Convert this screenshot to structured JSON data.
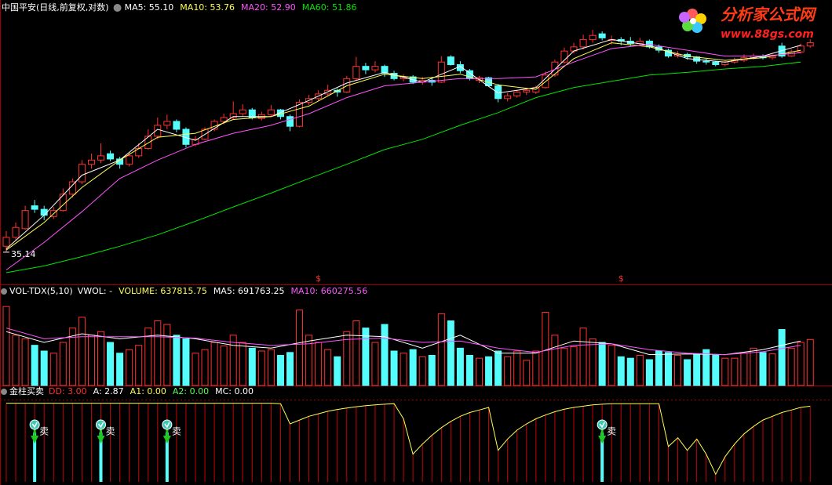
{
  "chart_data": [
    {
      "type": "candlestick",
      "title": "中国平安(日线,前复权,对数)",
      "log_scale": true,
      "ylim": [
        32.8,
        59
      ],
      "up_color": "#ff3232",
      "down_color": "#54fcfc",
      "low_marker": 35.14,
      "events": {
        "label": "$",
        "index": [
          33,
          65
        ]
      },
      "ohlc": [
        [
          35.6,
          36.8,
          35.14,
          36.3
        ],
        [
          36.3,
          37.5,
          36.0,
          37.1
        ],
        [
          37.0,
          38.9,
          36.9,
          38.5
        ],
        [
          38.9,
          39.4,
          38.3,
          38.6
        ],
        [
          38.6,
          38.9,
          37.7,
          38.1
        ],
        [
          38.0,
          38.8,
          37.8,
          38.5
        ],
        [
          38.5,
          40.4,
          38.4,
          39.9
        ],
        [
          39.9,
          41.3,
          39.6,
          41.0
        ],
        [
          41.0,
          43.0,
          40.8,
          42.6
        ],
        [
          42.6,
          43.6,
          42.2,
          43.0
        ],
        [
          43.0,
          44.6,
          42.7,
          43.4
        ],
        [
          43.6,
          43.9,
          42.9,
          43.1
        ],
        [
          43.1,
          43.3,
          42.2,
          42.6
        ],
        [
          42.6,
          43.7,
          42.4,
          43.4
        ],
        [
          43.4,
          44.6,
          43.2,
          44.1
        ],
        [
          44.1,
          46.0,
          44.0,
          45.3
        ],
        [
          45.3,
          47.2,
          45.0,
          46.4
        ],
        [
          46.4,
          47.5,
          46.0,
          46.8
        ],
        [
          46.8,
          47.0,
          45.7,
          46.0
        ],
        [
          46.0,
          46.2,
          44.2,
          44.5
        ],
        [
          44.5,
          45.3,
          44.3,
          45.0
        ],
        [
          45.0,
          46.2,
          44.9,
          46.0
        ],
        [
          46.0,
          47.0,
          45.8,
          46.8
        ],
        [
          46.8,
          47.6,
          46.5,
          47.2
        ],
        [
          47.2,
          48.9,
          47.0,
          47.6
        ],
        [
          47.6,
          48.6,
          47.3,
          48.0
        ],
        [
          48.0,
          48.2,
          47.0,
          47.2
        ],
        [
          47.1,
          47.8,
          46.9,
          47.5
        ],
        [
          47.5,
          48.5,
          47.3,
          48.0
        ],
        [
          48.0,
          48.1,
          47.0,
          47.3
        ],
        [
          47.3,
          47.5,
          45.8,
          46.3
        ],
        [
          46.3,
          49.1,
          46.2,
          48.8
        ],
        [
          48.8,
          49.6,
          48.5,
          49.2
        ],
        [
          49.2,
          50.1,
          49.0,
          49.7
        ],
        [
          49.7,
          50.7,
          49.5,
          50.1
        ],
        [
          50.1,
          50.3,
          49.4,
          49.9
        ],
        [
          49.9,
          51.7,
          49.8,
          51.4
        ],
        [
          51.4,
          53.9,
          51.2,
          52.8
        ],
        [
          52.8,
          53.2,
          51.9,
          52.4
        ],
        [
          52.4,
          53.4,
          52.1,
          52.8
        ],
        [
          52.8,
          53.0,
          51.6,
          52.0
        ],
        [
          52.0,
          52.3,
          51.2,
          51.4
        ],
        [
          51.4,
          51.9,
          51.1,
          51.6
        ],
        [
          51.6,
          51.8,
          50.8,
          51.0
        ],
        [
          51.0,
          51.6,
          50.7,
          51.2
        ],
        [
          51.2,
          51.5,
          50.6,
          51.0
        ],
        [
          51.0,
          54.0,
          50.9,
          53.3
        ],
        [
          53.9,
          54.1,
          52.9,
          53.0
        ],
        [
          53.0,
          53.4,
          52.0,
          52.3
        ],
        [
          52.3,
          52.5,
          51.2,
          51.4
        ],
        [
          51.2,
          51.7,
          50.9,
          51.5
        ],
        [
          51.5,
          51.6,
          50.5,
          50.6
        ],
        [
          50.6,
          50.8,
          48.8,
          49.2
        ],
        [
          49.2,
          49.8,
          48.9,
          49.5
        ],
        [
          49.5,
          50.1,
          49.3,
          49.9
        ],
        [
          49.9,
          50.3,
          49.6,
          50.1
        ],
        [
          49.9,
          50.6,
          49.7,
          50.4
        ],
        [
          50.4,
          52.2,
          50.3,
          51.8
        ],
        [
          51.8,
          53.6,
          51.6,
          53.3
        ],
        [
          53.3,
          55.0,
          53.1,
          54.6
        ],
        [
          54.6,
          55.6,
          54.3,
          55.1
        ],
        [
          55.1,
          56.6,
          54.8,
          56.0
        ],
        [
          56.0,
          57.2,
          55.6,
          56.5
        ],
        [
          56.7,
          57.0,
          55.9,
          56.2
        ],
        [
          56.0,
          56.5,
          55.4,
          56.0
        ],
        [
          56.0,
          56.3,
          55.3,
          55.8
        ],
        [
          55.8,
          56.3,
          55.2,
          55.5
        ],
        [
          55.5,
          56.2,
          55.3,
          55.8
        ],
        [
          55.8,
          56.0,
          54.9,
          55.1
        ],
        [
          55.1,
          55.4,
          54.4,
          54.7
        ],
        [
          54.7,
          54.9,
          53.8,
          54.0
        ],
        [
          54.0,
          54.6,
          53.8,
          54.2
        ],
        [
          54.2,
          54.4,
          53.6,
          53.9
        ],
        [
          53.9,
          54.0,
          53.1,
          53.4
        ],
        [
          53.4,
          53.7,
          53.0,
          53.3
        ],
        [
          53.3,
          53.4,
          52.8,
          53.0
        ],
        [
          53.0,
          53.5,
          52.8,
          53.3
        ],
        [
          53.3,
          53.8,
          53.1,
          53.5
        ],
        [
          53.5,
          54.2,
          53.3,
          53.8
        ],
        [
          53.8,
          54.3,
          53.6,
          54.0
        ],
        [
          54.0,
          54.2,
          53.6,
          53.8
        ],
        [
          53.8,
          54.2,
          53.6,
          54.0
        ],
        [
          55.2,
          55.6,
          53.8,
          54.0
        ],
        [
          54.0,
          54.8,
          53.9,
          54.5
        ],
        [
          54.5,
          55.5,
          54.3,
          55.2
        ],
        [
          55.2,
          56.0,
          55.0,
          55.6
        ]
      ],
      "ma_x": [
        0,
        4,
        8,
        12,
        16,
        20,
        24,
        28,
        32,
        36,
        40,
        44,
        48,
        52,
        56,
        60,
        64,
        68,
        72,
        76,
        80,
        84
      ],
      "series": [
        {
          "label": "MA5: 55.10",
          "color": "#ffffff",
          "values": [
            35.4,
            38.1,
            41.6,
            43.0,
            46.0,
            44.9,
            47.3,
            47.3,
            49.0,
            50.9,
            52.1,
            51.0,
            52.8,
            49.8,
            50.4,
            54.6,
            56.0,
            55.3,
            53.7,
            53.3,
            54.0,
            55.3
          ]
        },
        {
          "label": "MA10: 53.76",
          "color": "#ffff54",
          "values": [
            35.3,
            37.5,
            40.5,
            43.0,
            45.2,
            45.6,
            47.0,
            47.3,
            48.4,
            50.6,
            51.9,
            51.4,
            51.9,
            50.7,
            50.2,
            53.7,
            55.6,
            55.1,
            54.0,
            53.5,
            53.8,
            54.7
          ]
        },
        {
          "label": "MA20: 52.90",
          "color": "#ff54ff",
          "values": [
            33.8,
            35.9,
            38.4,
            41.3,
            43.0,
            44.5,
            45.6,
            46.4,
            47.6,
            49.3,
            50.6,
            51.0,
            51.4,
            51.4,
            51.6,
            53.3,
            54.9,
            55.4,
            54.7,
            54.0,
            54.0,
            54.4
          ]
        },
        {
          "label": "MA60: 51.86",
          "color": "#00e600",
          "values": [
            33.6,
            34.1,
            34.8,
            35.6,
            36.5,
            37.6,
            38.8,
            40.0,
            41.3,
            42.6,
            44.0,
            45.0,
            46.4,
            47.7,
            49.3,
            50.4,
            51.1,
            51.8,
            52.1,
            52.5,
            52.8,
            53.3
          ]
        }
      ]
    },
    {
      "type": "bar",
      "title": "VOL-TDX(5,10)",
      "fields": [
        {
          "text": "VWOL: -",
          "color": "#ffffff"
        },
        {
          "text": "VOLUME: 637815.75",
          "color": "#ffff54"
        }
      ],
      "ylim": [
        0,
        1200000
      ],
      "values": [
        1100000,
        700000,
        650000,
        560000,
        480000,
        450000,
        600000,
        800000,
        950000,
        700000,
        750000,
        600000,
        450000,
        500000,
        560000,
        800000,
        900000,
        850000,
        700000,
        650000,
        450000,
        500000,
        600000,
        550000,
        700000,
        600000,
        520000,
        480000,
        500000,
        420000,
        460000,
        1050000,
        700000,
        600000,
        500000,
        400000,
        750000,
        900000,
        800000,
        600000,
        850000,
        480000,
        450000,
        500000,
        400000,
        420000,
        1000000,
        900000,
        520000,
        420000,
        380000,
        400000,
        480000,
        400000,
        480000,
        350000,
        480000,
        1020000,
        700000,
        520000,
        540000,
        800000,
        650000,
        600000,
        560000,
        400000,
        380000,
        420000,
        360000,
        480000,
        460000,
        420000,
        360000,
        440000,
        500000,
        420000,
        380000,
        380000,
        450000,
        520000,
        460000,
        440000,
        780000,
        520000,
        600000,
        640000
      ],
      "ma_x": [
        0,
        4,
        8,
        12,
        16,
        20,
        24,
        28,
        32,
        36,
        40,
        44,
        48,
        52,
        56,
        60,
        64,
        68,
        72,
        76,
        80,
        84
      ],
      "series": [
        {
          "label": "MA5: 691763.25",
          "color": "#ffffff",
          "values": [
            750000,
            600000,
            720000,
            650000,
            700000,
            650000,
            560000,
            520000,
            620000,
            700000,
            680000,
            520000,
            700000,
            450000,
            450000,
            620000,
            580000,
            430000,
            440000,
            430000,
            500000,
            620000
          ]
        },
        {
          "label": "MA10: 660275.56",
          "color": "#ff54ff",
          "values": [
            800000,
            650000,
            680000,
            680000,
            680000,
            660000,
            600000,
            560000,
            580000,
            640000,
            660000,
            600000,
            620000,
            520000,
            460000,
            560000,
            580000,
            500000,
            450000,
            430000,
            470000,
            560000
          ]
        }
      ]
    },
    {
      "type": "line",
      "title": "金柱买卖",
      "fields": [
        {
          "text": "DD: 3.00",
          "color": "#ff3232"
        },
        {
          "text": "A: 2.87",
          "color": "#ffffff"
        },
        {
          "text": "A1: 0.00",
          "color": "#ffff54"
        },
        {
          "text": "A2: 0.00",
          "color": "#54ff54"
        },
        {
          "text": "MC: 0.00",
          "color": "#ffffff"
        }
      ],
      "ylim": [
        0,
        3.2
      ],
      "color": "#ffff54",
      "bar_color": "#c80000",
      "values": [
        3.12,
        3.12,
        3.12,
        3.12,
        3.12,
        3.12,
        3.12,
        3.12,
        3.12,
        3.12,
        3.12,
        3.12,
        3.12,
        3.12,
        3.12,
        3.12,
        3.12,
        3.12,
        3.12,
        3.12,
        3.12,
        3.12,
        3.12,
        3.12,
        3.12,
        3.12,
        3.12,
        3.12,
        3.12,
        3.1,
        2.3,
        2.45,
        2.6,
        2.7,
        2.8,
        2.87,
        2.93,
        2.98,
        3.02,
        3.05,
        3.08,
        3.1,
        2.5,
        1.1,
        1.5,
        1.85,
        2.15,
        2.4,
        2.6,
        2.75,
        2.85,
        2.95,
        1.25,
        1.7,
        2.05,
        2.3,
        2.5,
        2.65,
        2.78,
        2.88,
        2.95,
        3.0,
        3.05,
        3.08,
        3.1,
        3.1,
        3.1,
        3.1,
        3.1,
        3.1,
        1.4,
        1.75,
        1.25,
        1.7,
        1.1,
        0.3,
        1.0,
        1.5,
        1.9,
        2.2,
        2.45,
        2.6,
        2.75,
        2.85,
        2.95,
        3.0
      ],
      "signals": {
        "label": "卖",
        "index": [
          3,
          10,
          17,
          63
        ]
      }
    }
  ],
  "watermark": {
    "title": "分析家公式网",
    "url": "www.88gs.com"
  }
}
